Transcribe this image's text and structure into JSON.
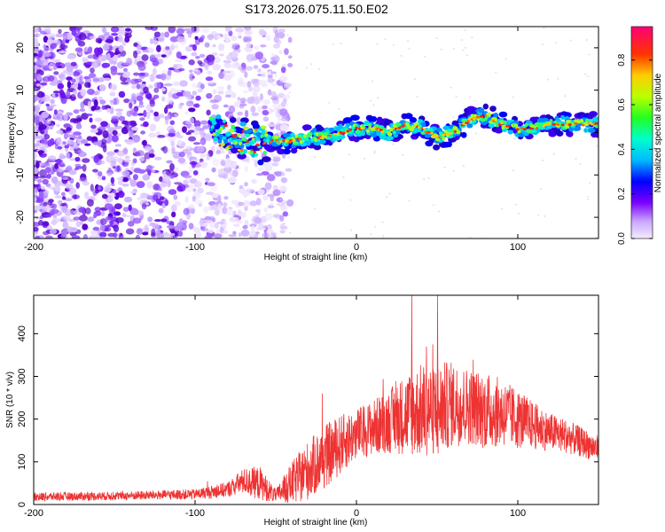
{
  "title": "S173.2026.075.11.50.E02",
  "chart_data": [
    {
      "type": "heatmap",
      "name": "spectrogram",
      "xlabel": "Height of straight line (km)",
      "ylabel": "Frequency (Hz)",
      "xlim": [
        -200,
        150
      ],
      "ylim": [
        -25,
        25
      ],
      "xticks": [
        -200,
        -100,
        0,
        100
      ],
      "yticks": [
        -20,
        -10,
        0,
        10,
        20
      ],
      "noise_region_x": [
        -200,
        -50
      ],
      "signal_track": {
        "x": [
          -90,
          -80,
          -70,
          -60,
          -50,
          -40,
          -30,
          -20,
          -10,
          0,
          10,
          20,
          30,
          40,
          50,
          60,
          70,
          80,
          90,
          100,
          110,
          120,
          130,
          140,
          150
        ],
        "frequency": [
          1,
          -1,
          -2,
          -2,
          -2,
          -2,
          -1,
          -1,
          0,
          1,
          1,
          0,
          2,
          1,
          -1,
          0,
          3,
          4,
          2,
          1,
          1,
          2,
          2,
          2,
          2
        ]
      },
      "colorbar": {
        "label": "Normalized spectral amplitude",
        "range": [
          0,
          0.95
        ],
        "ticks": [
          "0.0",
          "0.2",
          "0.4",
          "0.6",
          "0.8"
        ],
        "colormap": "rainbow"
      }
    },
    {
      "type": "line",
      "name": "snr",
      "xlabel": "Height of straight line (km)",
      "ylabel": "SNR (10 * v/v)",
      "xlim": [
        -200,
        150
      ],
      "ylim": [
        0,
        490
      ],
      "xticks": [
        -200,
        -100,
        0,
        100
      ],
      "yticks": [
        0,
        100,
        200,
        300,
        400
      ],
      "color": "#ee3333",
      "envelope": {
        "x": [
          -200,
          -150,
          -100,
          -80,
          -70,
          -60,
          -50,
          -40,
          -30,
          -20,
          -10,
          0,
          10,
          20,
          30,
          40,
          50,
          60,
          70,
          80,
          90,
          100,
          110,
          120,
          130,
          140,
          150
        ],
        "mean": [
          18,
          20,
          24,
          35,
          55,
          50,
          20,
          50,
          80,
          110,
          140,
          165,
          180,
          195,
          210,
          220,
          225,
          235,
          230,
          220,
          215,
          200,
          185,
          170,
          160,
          145,
          130
        ],
        "spread": [
          10,
          10,
          12,
          18,
          30,
          40,
          15,
          50,
          70,
          75,
          70,
          60,
          65,
          75,
          95,
          110,
          110,
          100,
          90,
          90,
          80,
          70,
          55,
          45,
          40,
          35,
          30
        ]
      },
      "peaks": [
        {
          "x": 34,
          "y": 490
        },
        {
          "x": 50,
          "y": 490
        },
        {
          "x": 47,
          "y": 375
        }
      ]
    }
  ]
}
